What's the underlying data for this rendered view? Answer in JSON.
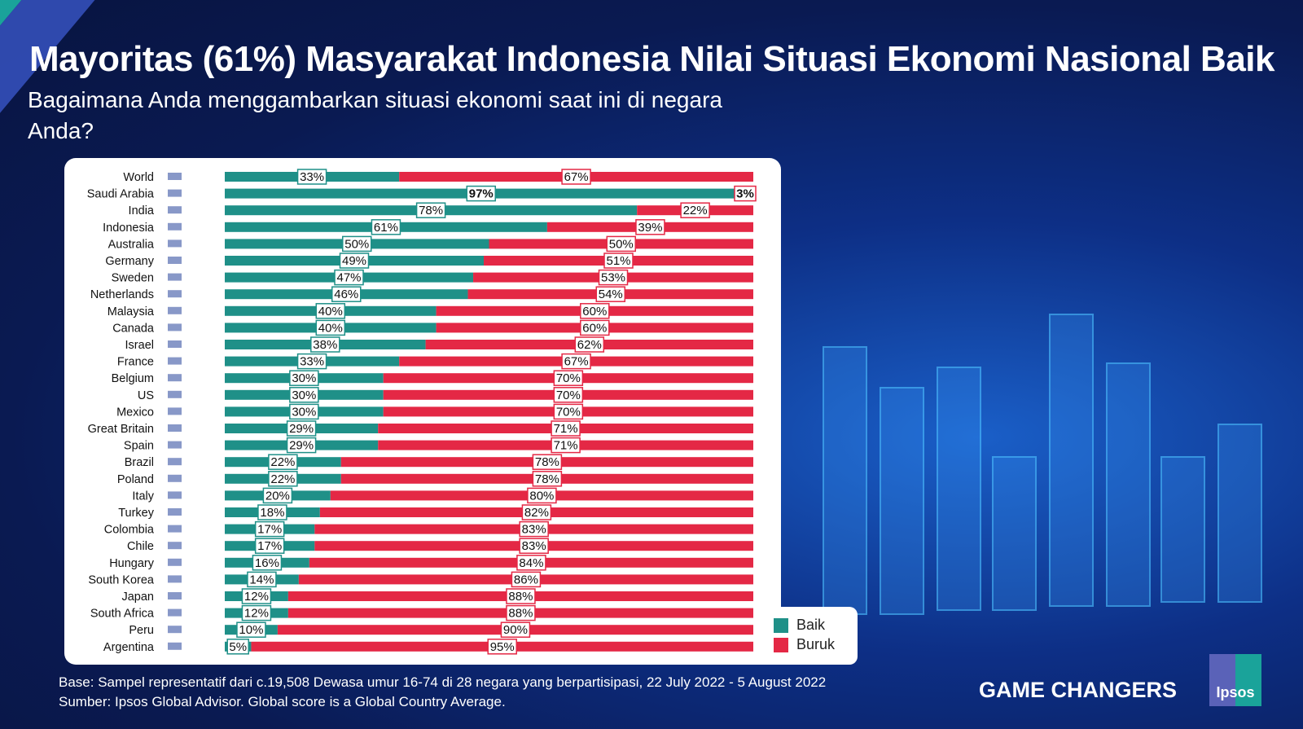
{
  "title": "Mayoritas (61%) Masyarakat Indonesia Nilai Situasi Ekonomi Nasional Baik",
  "subtitle": "Bagaimana Anda menggambarkan situasi ekonomi saat ini di negara Anda?",
  "colors": {
    "baik": "#1f9088",
    "buruk": "#e42845",
    "background": "#0d2f86"
  },
  "chart_data": {
    "type": "bar",
    "stacked": true,
    "orientation": "horizontal",
    "categories": [
      "World",
      "Saudi Arabia",
      "India",
      "Indonesia",
      "Australia",
      "Germany",
      "Sweden",
      "Netherlands",
      "Malaysia",
      "Canada",
      "Israel",
      "France",
      "Belgium",
      "US",
      "Mexico",
      "Great Britain",
      "Spain",
      "Brazil",
      "Poland",
      "Italy",
      "Turkey",
      "Colombia",
      "Chile",
      "Hungary",
      "South Korea",
      "Japan",
      "South Africa",
      "Peru",
      "Argentina"
    ],
    "series": [
      {
        "name": "Baik",
        "values": [
          33,
          97,
          78,
          61,
          50,
          49,
          47,
          46,
          40,
          40,
          38,
          33,
          30,
          30,
          30,
          29,
          29,
          22,
          22,
          20,
          18,
          17,
          17,
          16,
          14,
          12,
          12,
          10,
          5
        ]
      },
      {
        "name": "Buruk",
        "values": [
          67,
          3,
          22,
          39,
          50,
          51,
          53,
          54,
          60,
          60,
          62,
          67,
          70,
          70,
          70,
          71,
          71,
          78,
          78,
          80,
          82,
          83,
          83,
          84,
          86,
          88,
          88,
          90,
          95
        ]
      }
    ],
    "xlim": [
      0,
      100
    ],
    "legend": "bottom-right"
  },
  "footer": {
    "base": "Base: Sampel representatif dari c.19,508 Dewasa umur 16-74 di 28 negara yang berpartisipasi, 22 July 2022 - 5 August 2022",
    "source": "Sumber: Ipsos Global Advisor. Global score is a Global Country Average."
  },
  "brand": {
    "tagline": "GAME CHANGERS",
    "logo": "Ipsos"
  }
}
